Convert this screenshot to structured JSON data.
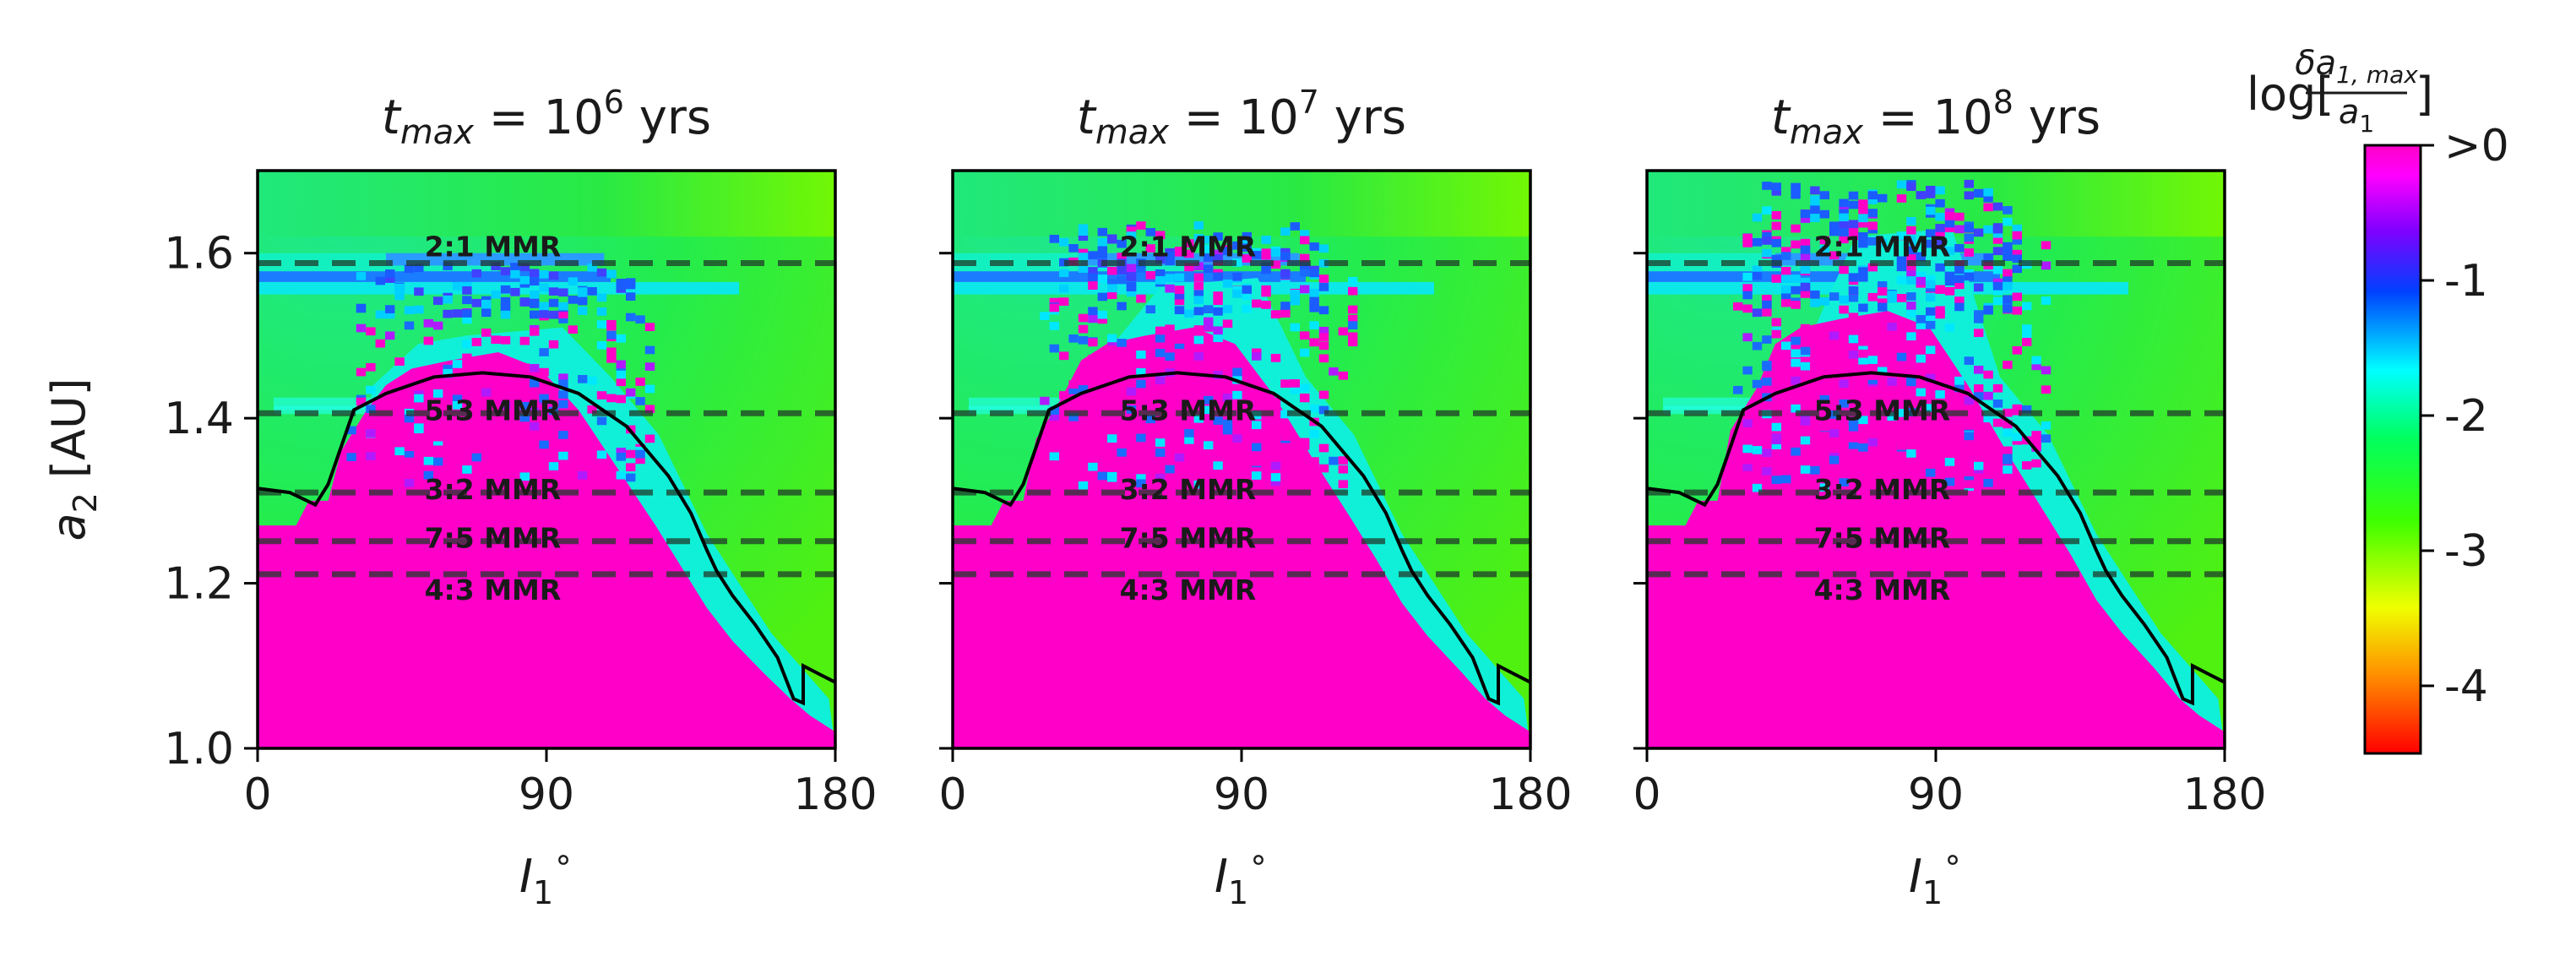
{
  "colors": {
    "magenta": "#ff00c8",
    "background_green": "#2ee860",
    "cyan": "#00ffe0",
    "blue": "#1a8cff",
    "line": "#000000",
    "dashed": "#1f3a2a"
  },
  "chart_data": {
    "type": "heatmap",
    "ylabel": "a_2 [AU]",
    "ylabel_sub": "2",
    "ylabel_main": "a",
    "ylabel_unit": " [AU]",
    "xlabel_main": "I",
    "xlabel_sub": "1",
    "xlabel_sup": "∘",
    "xlim": [
      0,
      180
    ],
    "ylim": [
      1.0,
      1.7
    ],
    "xticks": [
      "0",
      "90",
      "180"
    ],
    "yticks": [
      "1.0",
      "1.2",
      "1.4",
      "1.6"
    ],
    "ytick_values": [
      1.0,
      1.2,
      1.4,
      1.6
    ],
    "xtick_values": [
      0,
      90,
      180
    ],
    "panels": [
      {
        "title_prefix": "t",
        "title_sub": "max",
        "title_eq": " = 10",
        "title_exp": "6",
        "title_suffix": " yrs",
        "tmax_years": 1000000
      },
      {
        "title_prefix": "t",
        "title_sub": "max",
        "title_eq": " = 10",
        "title_exp": "7",
        "title_suffix": " yrs",
        "tmax_years": 10000000
      },
      {
        "title_prefix": "t",
        "title_sub": "max",
        "title_eq": " = 10",
        "title_exp": "8",
        "title_suffix": " yrs",
        "tmax_years": 100000000
      }
    ],
    "resonances": [
      {
        "label": "2:1 MMR",
        "a2": 1.588
      },
      {
        "label": "5:3 MMR",
        "a2": 1.406
      },
      {
        "label": "3:2 MMR",
        "a2": 1.31
      },
      {
        "label": "7:5 MMR",
        "a2": 1.251
      },
      {
        "label": "4:3 MMR",
        "a2": 1.211
      }
    ],
    "boundary_curve": [
      [
        0,
        1.315
      ],
      [
        10,
        1.31
      ],
      [
        18,
        1.295
      ],
      [
        22,
        1.32
      ],
      [
        30,
        1.41
      ],
      [
        40,
        1.43
      ],
      [
        55,
        1.45
      ],
      [
        70,
        1.455
      ],
      [
        85,
        1.45
      ],
      [
        100,
        1.43
      ],
      [
        115,
        1.39
      ],
      [
        128,
        1.33
      ],
      [
        135,
        1.285
      ],
      [
        140,
        1.24
      ],
      [
        143,
        1.215
      ],
      [
        148,
        1.185
      ],
      [
        155,
        1.15
      ],
      [
        162,
        1.11
      ],
      [
        165,
        1.08
      ],
      [
        167,
        1.06
      ],
      [
        170,
        1.055
      ],
      [
        170,
        1.1
      ],
      [
        175,
        1.09
      ],
      [
        180,
        1.08
      ]
    ],
    "colorbar": {
      "title": "log[δa1,max/a1]",
      "title_log": "log[",
      "title_num": "δa",
      "title_num_sub": "1, max",
      "title_den": "a",
      "title_den_sub": "1",
      "title_close": "]",
      "ticks": [
        ">0",
        "-1",
        "-2",
        "-3",
        "-4"
      ],
      "tick_values": [
        0,
        -1,
        -2,
        -3,
        -4
      ],
      "range": [
        -4.5,
        0
      ]
    },
    "unstable_region_description": "magenta = unstable (>0)"
  }
}
